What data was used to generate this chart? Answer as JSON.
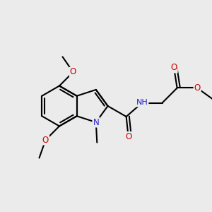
{
  "bg_color": "#ebebeb",
  "atom_colors": {
    "C": "#000000",
    "N": "#2222cc",
    "O": "#cc0000",
    "H": "#888888"
  },
  "bond_color": "#000000",
  "bond_lw": 1.5,
  "figsize": [
    3.0,
    3.0
  ],
  "dpi": 100,
  "xlim": [
    0.0,
    10.0
  ],
  "ylim": [
    0.0,
    10.0
  ]
}
